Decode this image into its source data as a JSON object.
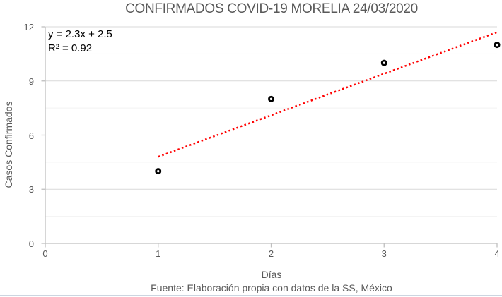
{
  "title": "CONFIRMADOS COVID-19 MORELIA 24/03/2020",
  "annotation": {
    "equation": "y = 2.3x + 2.5",
    "r_squared": "R² = 0.92"
  },
  "x_axis": {
    "label": "Días"
  },
  "y_axis": {
    "label": "Casos Confirmados"
  },
  "source_note": "Fuente: Elaboración propia con datos de la SS, México",
  "colors": {
    "trendline": "#ff0000",
    "marker_stroke": "#000000",
    "marker_fill": "#ffffff",
    "grid_major": "#d9d9d9",
    "grid_minor": "#f2f2f2",
    "axis_line": "#bfbfbf",
    "text_gray": "#595959",
    "annotation_text": "#000000",
    "bottom_border": "#ccd5e0"
  },
  "chart_data": {
    "type": "scatter",
    "title": "CONFIRMADOS COVID-19 MORELIA 24/03/2020",
    "x": [
      1,
      2,
      3,
      4
    ],
    "y": [
      4,
      8,
      10,
      11
    ],
    "xlabel": "Días",
    "ylabel": "Casos Confirmados",
    "xlim": [
      0,
      4
    ],
    "ylim": [
      0,
      12
    ],
    "x_ticks": [
      0,
      1,
      2,
      3,
      4
    ],
    "y_ticks": [
      0,
      3,
      6,
      9,
      12
    ],
    "y_minor_ticks": [
      1.5,
      4.5,
      7.5,
      10.5
    ],
    "grid": "horizontal major and minor gridlines, no vertical gridlines",
    "legend": "none",
    "marker": "black open circle",
    "trendline": {
      "type": "linear",
      "equation": "y = 2.3x + 2.5",
      "slope": 2.3,
      "intercept": 2.5,
      "r_squared": 0.92,
      "x_start": 1,
      "x_end": 4,
      "style": "dotted",
      "color": "#ff0000"
    },
    "annotations": [
      "y = 2.3x + 2.5",
      "R² = 0.92"
    ],
    "source_note": "Fuente: Elaboración propia con datos de la SS, México"
  }
}
